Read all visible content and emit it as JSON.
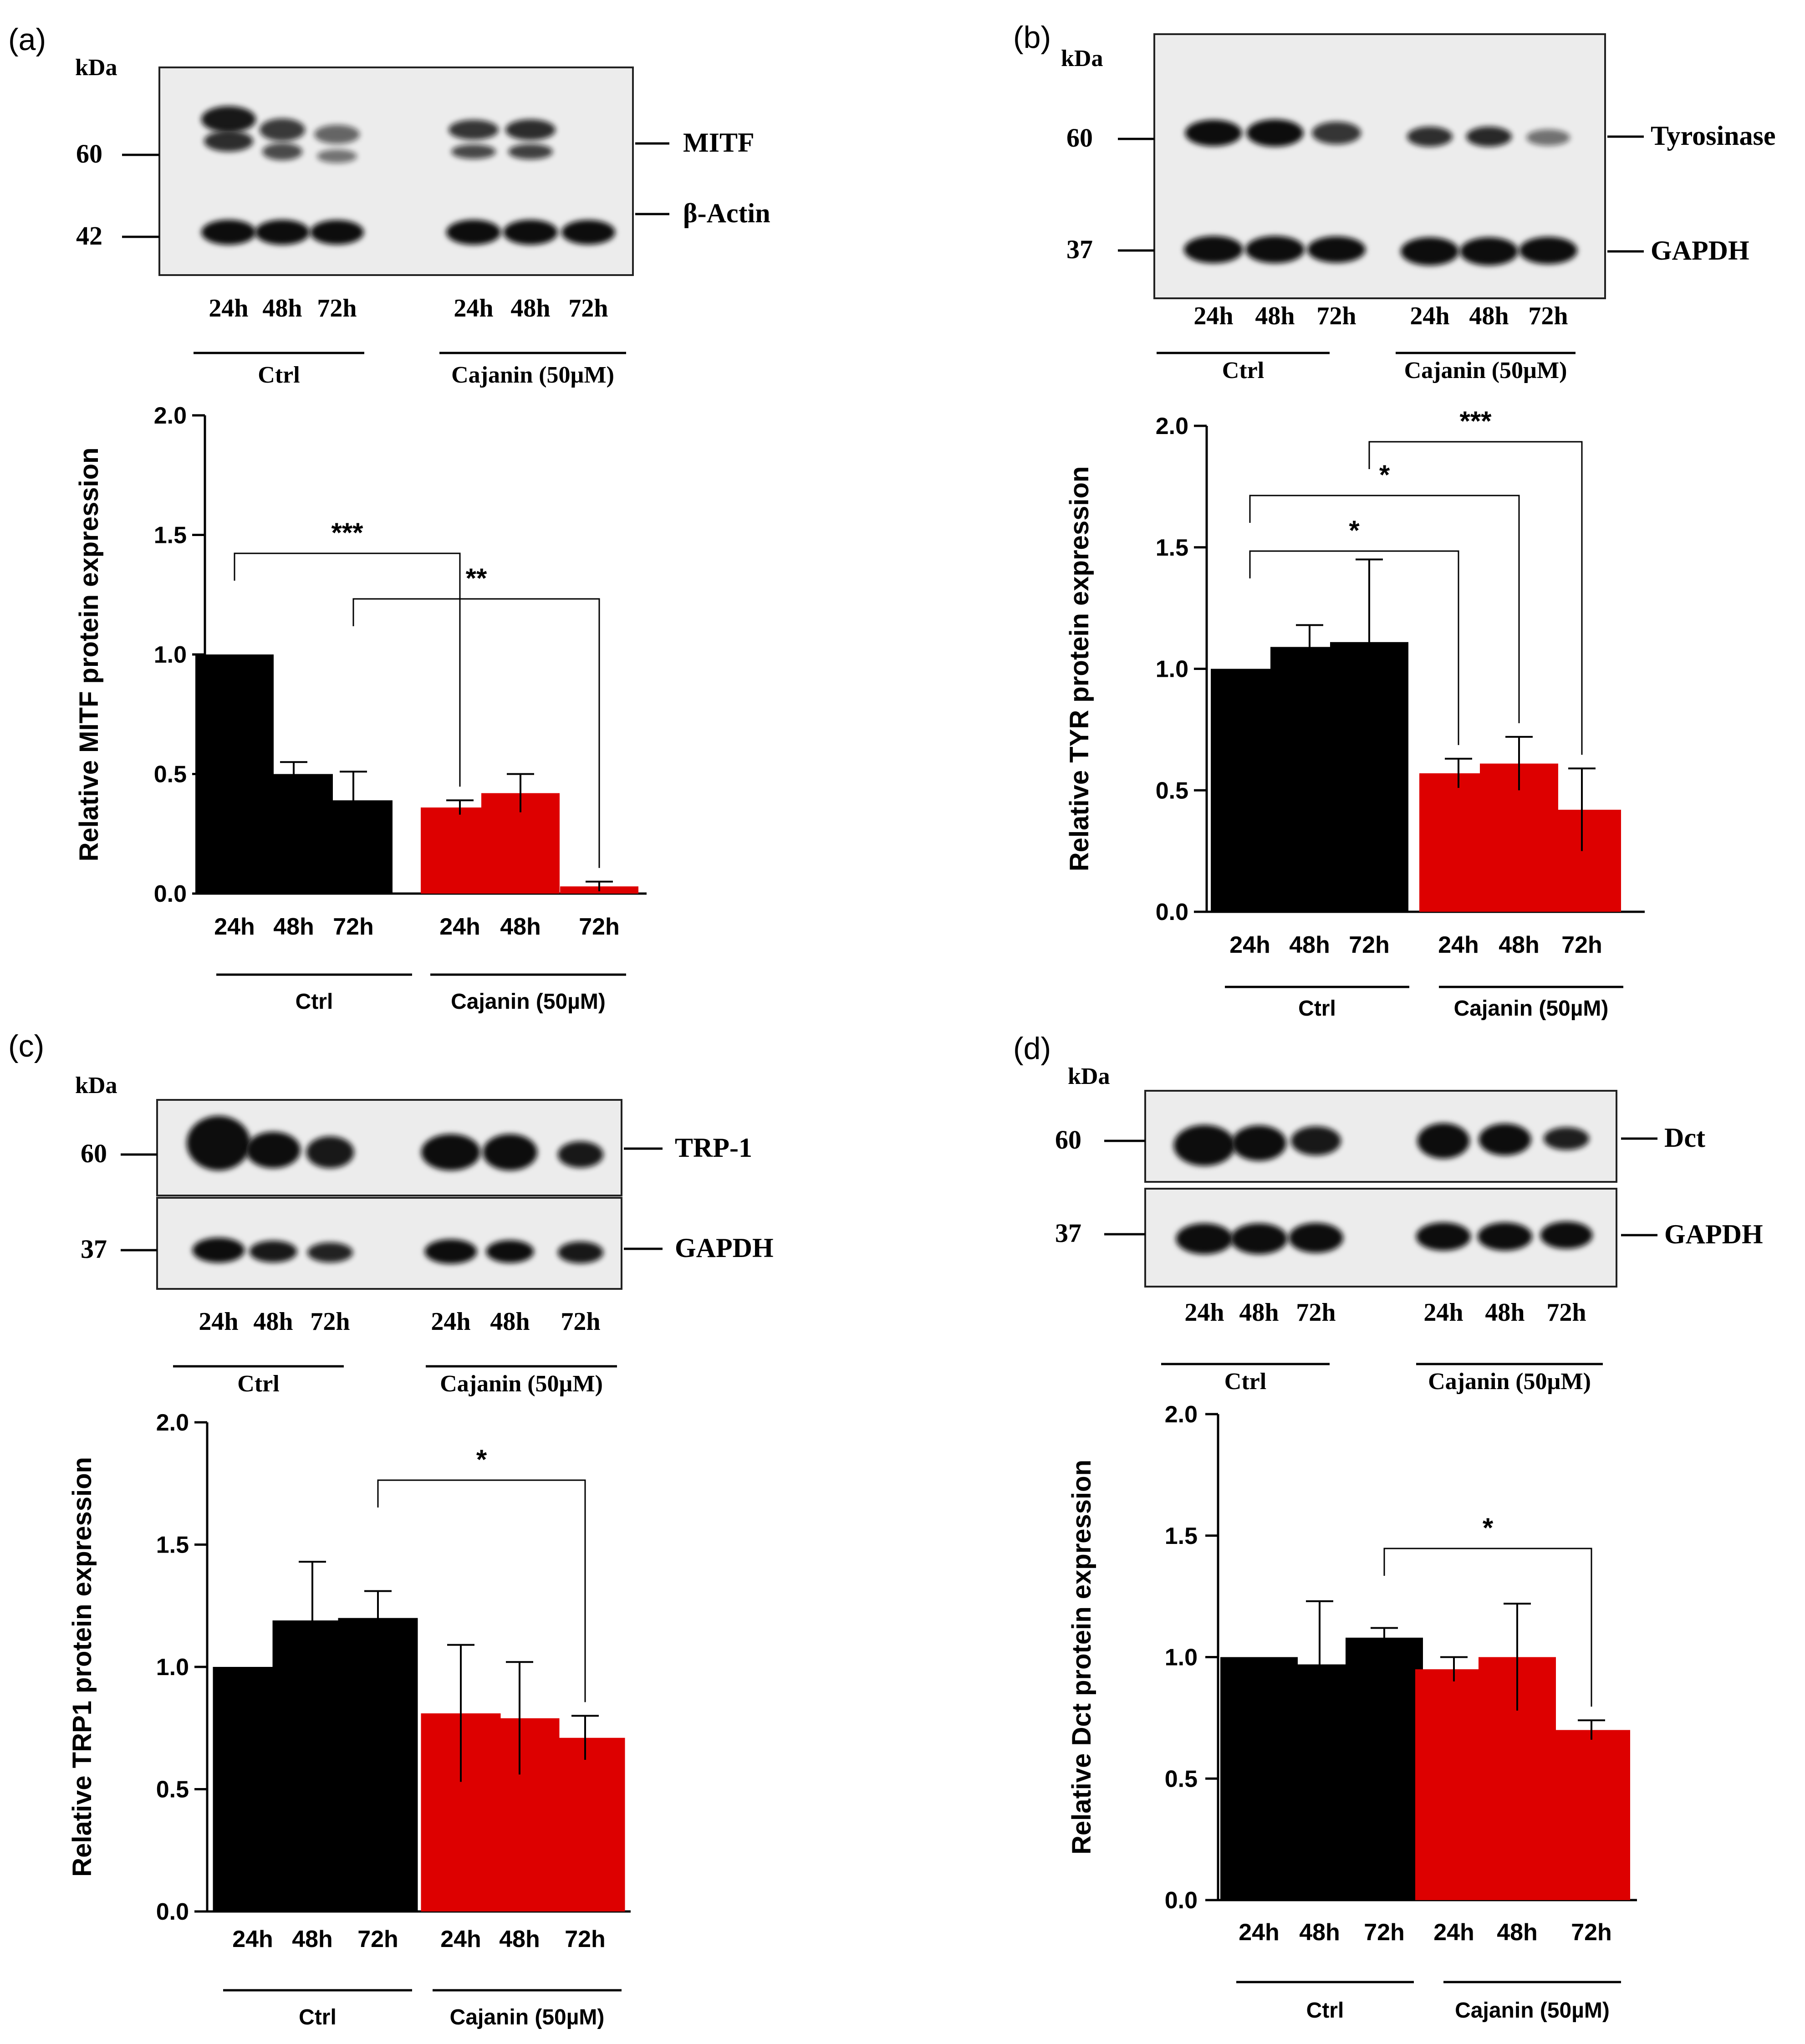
{
  "panels": [
    {
      "id": "a",
      "label": "(a)",
      "blot": {
        "kda_label": "kDa",
        "markers": [
          "60",
          "42"
        ],
        "proteins": [
          "MITF",
          "β-Actin"
        ],
        "strips": 1
      },
      "lane_labels": [
        "24h",
        "48h",
        "72h",
        "24h",
        "48h",
        "72h"
      ],
      "groups": [
        "Ctrl",
        "Cajanin (50µM)"
      ]
    },
    {
      "id": "b",
      "label": "(b)",
      "blot": {
        "kda_label": "kDa",
        "markers": [
          "60",
          "37"
        ],
        "proteins": [
          "Tyrosinase",
          "GAPDH"
        ],
        "strips": 1
      },
      "lane_labels": [
        "24h",
        "48h",
        "72h",
        "24h",
        "48h",
        "72h"
      ],
      "groups": [
        "Ctrl",
        "Cajanin (50µM)"
      ]
    },
    {
      "id": "c",
      "label": "(c)",
      "blot": {
        "kda_label": "kDa",
        "markers": [
          "60",
          "37"
        ],
        "proteins": [
          "TRP-1",
          "GAPDH"
        ],
        "strips": 2
      },
      "lane_labels": [
        "24h",
        "48h",
        "72h",
        "24h",
        "48h",
        "72h"
      ],
      "groups": [
        "Ctrl",
        "Cajanin (50µM)"
      ]
    },
    {
      "id": "d",
      "label": "(d)",
      "blot": {
        "kda_label": "kDa",
        "markers": [
          "60",
          "37"
        ],
        "proteins": [
          "Dct",
          "GAPDH"
        ],
        "strips": 2
      },
      "lane_labels": [
        "24h",
        "48h",
        "72h",
        "24h",
        "48h",
        "72h"
      ],
      "groups": [
        "Ctrl",
        "Cajanin (50µM)"
      ]
    }
  ],
  "colors": {
    "ctrl": "#000000",
    "treated": "#dd0000"
  },
  "chart_data": [
    {
      "type": "bar",
      "panel": "a",
      "categories": [
        "24h",
        "48h",
        "72h",
        "24h",
        "48h",
        "72h"
      ],
      "groups": [
        "Ctrl",
        "Ctrl",
        "Ctrl",
        "Cajanin (50µM)",
        "Cajanin (50µM)",
        "Cajanin (50µM)"
      ],
      "values": [
        1.0,
        0.5,
        0.39,
        0.36,
        0.42,
        0.03
      ],
      "errors": [
        0,
        0.05,
        0.12,
        0.03,
        0.08,
        0.02
      ],
      "ylabel": "Relative MITF protein expression",
      "ylim": [
        0,
        2.0
      ],
      "yticks": [
        "0.0",
        "0.5",
        "1.0",
        "1.5",
        "2.0"
      ],
      "significance": [
        {
          "from": 0,
          "to": 3,
          "label": "***"
        },
        {
          "from": 2,
          "to": 5,
          "label": "**"
        }
      ]
    },
    {
      "type": "bar",
      "panel": "b",
      "categories": [
        "24h",
        "48h",
        "72h",
        "24h",
        "48h",
        "72h"
      ],
      "groups": [
        "Ctrl",
        "Ctrl",
        "Ctrl",
        "Cajanin (50µM)",
        "Cajanin (50µM)",
        "Cajanin (50µM)"
      ],
      "values": [
        1.0,
        1.09,
        1.11,
        0.57,
        0.61,
        0.42
      ],
      "errors": [
        0,
        0.09,
        0.34,
        0.06,
        0.11,
        0.17
      ],
      "ylabel": "Relative TYR protein expression",
      "ylim": [
        0,
        2.0
      ],
      "yticks": [
        "0.0",
        "0.5",
        "1.0",
        "1.5",
        "2.0"
      ],
      "significance": [
        {
          "from": 0,
          "to": 3,
          "label": "*"
        },
        {
          "from": 0,
          "to": 4,
          "label": "*"
        },
        {
          "from": 2,
          "to": 5,
          "label": "***"
        }
      ]
    },
    {
      "type": "bar",
      "panel": "c",
      "categories": [
        "24h",
        "48h",
        "72h",
        "24h",
        "48h",
        "72h"
      ],
      "groups": [
        "Ctrl",
        "Ctrl",
        "Ctrl",
        "Cajanin (50µM)",
        "Cajanin (50µM)",
        "Cajanin (50µM)"
      ],
      "values": [
        1.0,
        1.19,
        1.2,
        0.81,
        0.79,
        0.71
      ],
      "errors": [
        0,
        0.24,
        0.11,
        0.28,
        0.23,
        0.09
      ],
      "ylabel": "Relative TRP1 protein expression",
      "ylim": [
        0,
        2.0
      ],
      "yticks": [
        "0.0",
        "0.5",
        "1.0",
        "1.5",
        "2.0"
      ],
      "significance": [
        {
          "from": 2,
          "to": 5,
          "label": "*"
        }
      ]
    },
    {
      "type": "bar",
      "panel": "d",
      "categories": [
        "24h",
        "48h",
        "72h",
        "24h",
        "48h",
        "72h"
      ],
      "groups": [
        "Ctrl",
        "Ctrl",
        "Ctrl",
        "Cajanin (50µM)",
        "Cajanin (50µM)",
        "Cajanin (50µM)"
      ],
      "values": [
        1.0,
        0.97,
        1.08,
        0.95,
        1.0,
        0.7
      ],
      "errors": [
        0,
        0.26,
        0.04,
        0.05,
        0.22,
        0.04
      ],
      "ylabel": "Relative Dct protein expression",
      "ylim": [
        0,
        2.0
      ],
      "yticks": [
        "0.0",
        "0.5",
        "1.0",
        "1.5",
        "2.0"
      ],
      "significance": [
        {
          "from": 2,
          "to": 5,
          "label": "*"
        }
      ]
    }
  ]
}
